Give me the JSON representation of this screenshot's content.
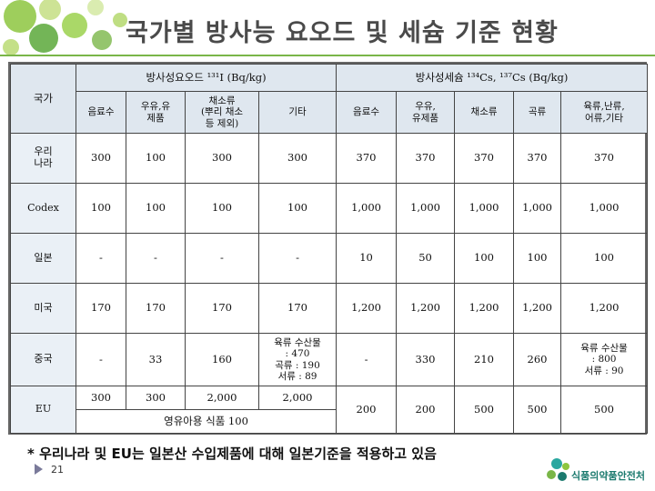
{
  "slide": {
    "title": "국가별 방사능 요오드 및 세슘 기준 현황",
    "note": "* 우리나라 및 EU는 일본산 수입제품에 대해 일본기준을 적용하고 있음",
    "page_number": "21",
    "logo_text": "식품의약품안전처"
  },
  "table": {
    "country_header": "국가",
    "iodine_header": "방사성요오드 ¹³¹I (Bq/kg)",
    "cesium_header": "방사성세슘 ¹³⁴Cs, ¹³⁷Cs (Bq/kg)",
    "iodine_cols": [
      "음료수",
      "우유,유\n제품",
      "채소류\n(뿌리 채소\n등 제외)",
      "기타"
    ],
    "cesium_cols": [
      "음료수",
      "우유,\n유제품",
      "채소류",
      "곡류",
      "육류,난류,\n어류,기타"
    ],
    "rows": [
      {
        "country": "우리\n나라",
        "iodine": [
          "300",
          "100",
          "300",
          "300"
        ],
        "cesium": [
          "370",
          "370",
          "370",
          "370",
          "370"
        ]
      },
      {
        "country": "Codex",
        "iodine": [
          "100",
          "100",
          "100",
          "100"
        ],
        "cesium": [
          "1,000",
          "1,000",
          "1,000",
          "1,000",
          "1,000"
        ]
      },
      {
        "country": "일본",
        "iodine": [
          "-",
          "-",
          "-",
          "-"
        ],
        "cesium": [
          "10",
          "50",
          "100",
          "100",
          "100"
        ]
      },
      {
        "country": "미국",
        "iodine": [
          "170",
          "170",
          "170",
          "170"
        ],
        "cesium": [
          "1,200",
          "1,200",
          "1,200",
          "1,200",
          "1,200"
        ]
      },
      {
        "country": "중국",
        "iodine": [
          "-",
          "33",
          "160",
          "육류 수산물\n: 470\n곡류 : 190\n서류 : 89"
        ],
        "cesium": [
          "-",
          "330",
          "210",
          "260",
          "육류 수산물\n: 800\n서류 : 90"
        ]
      }
    ],
    "eu": {
      "country": "EU",
      "iodine": [
        "300",
        "300",
        "2,000",
        "2,000"
      ],
      "infant_food": "영유아용 식품 100",
      "cesium": [
        "200",
        "200",
        "500",
        "500",
        "500"
      ]
    }
  }
}
